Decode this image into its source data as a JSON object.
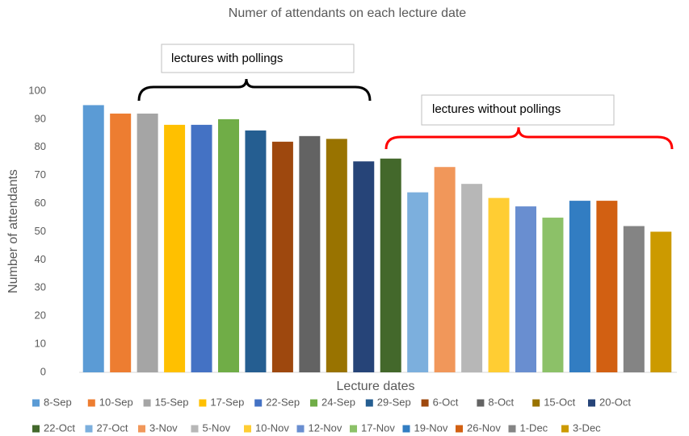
{
  "chart_data": {
    "type": "bar",
    "title": "Numer of attendants on each lecture date",
    "x_label": "Lecture dates",
    "y_label": "Number of attendants",
    "categories": [
      "8-Sep",
      "10-Sep",
      "15-Sep",
      "17-Sep",
      "22-Sep",
      "24-Sep",
      "29-Sep",
      "6-Oct",
      "8-Oct",
      "15-Oct",
      "20-Oct",
      "22-Oct",
      "27-Oct",
      "3-Nov",
      "5-Nov",
      "10-Nov",
      "12-Nov",
      "17-Nov",
      "19-Nov",
      "26-Nov",
      "1-Dec",
      "3-Dec"
    ],
    "values": [
      95,
      92,
      92,
      88,
      88,
      90,
      86,
      82,
      84,
      83,
      75,
      76,
      64,
      73,
      67,
      62,
      59,
      55,
      61,
      61,
      52,
      50
    ],
    "colors": [
      "#5b9bd5",
      "#ed7d31",
      "#a5a5a5",
      "#ffc000",
      "#4472c4",
      "#70ad47",
      "#255e91",
      "#9e480e",
      "#636363",
      "#997300",
      "#264478",
      "#43682b",
      "#7cafdd",
      "#f1975a",
      "#b7b7b7",
      "#ffcd33",
      "#698ed0",
      "#8cc168",
      "#327dc2",
      "#d26012",
      "#848484",
      "#cc9a00"
    ],
    "ylim": [
      0,
      100
    ],
    "yticks": [
      0,
      10,
      20,
      30,
      40,
      50,
      60,
      70,
      80,
      90,
      100
    ],
    "grid": false,
    "legend": "bottom",
    "annotations": [
      "lectures with pollings",
      "lectures without pollings"
    ]
  }
}
